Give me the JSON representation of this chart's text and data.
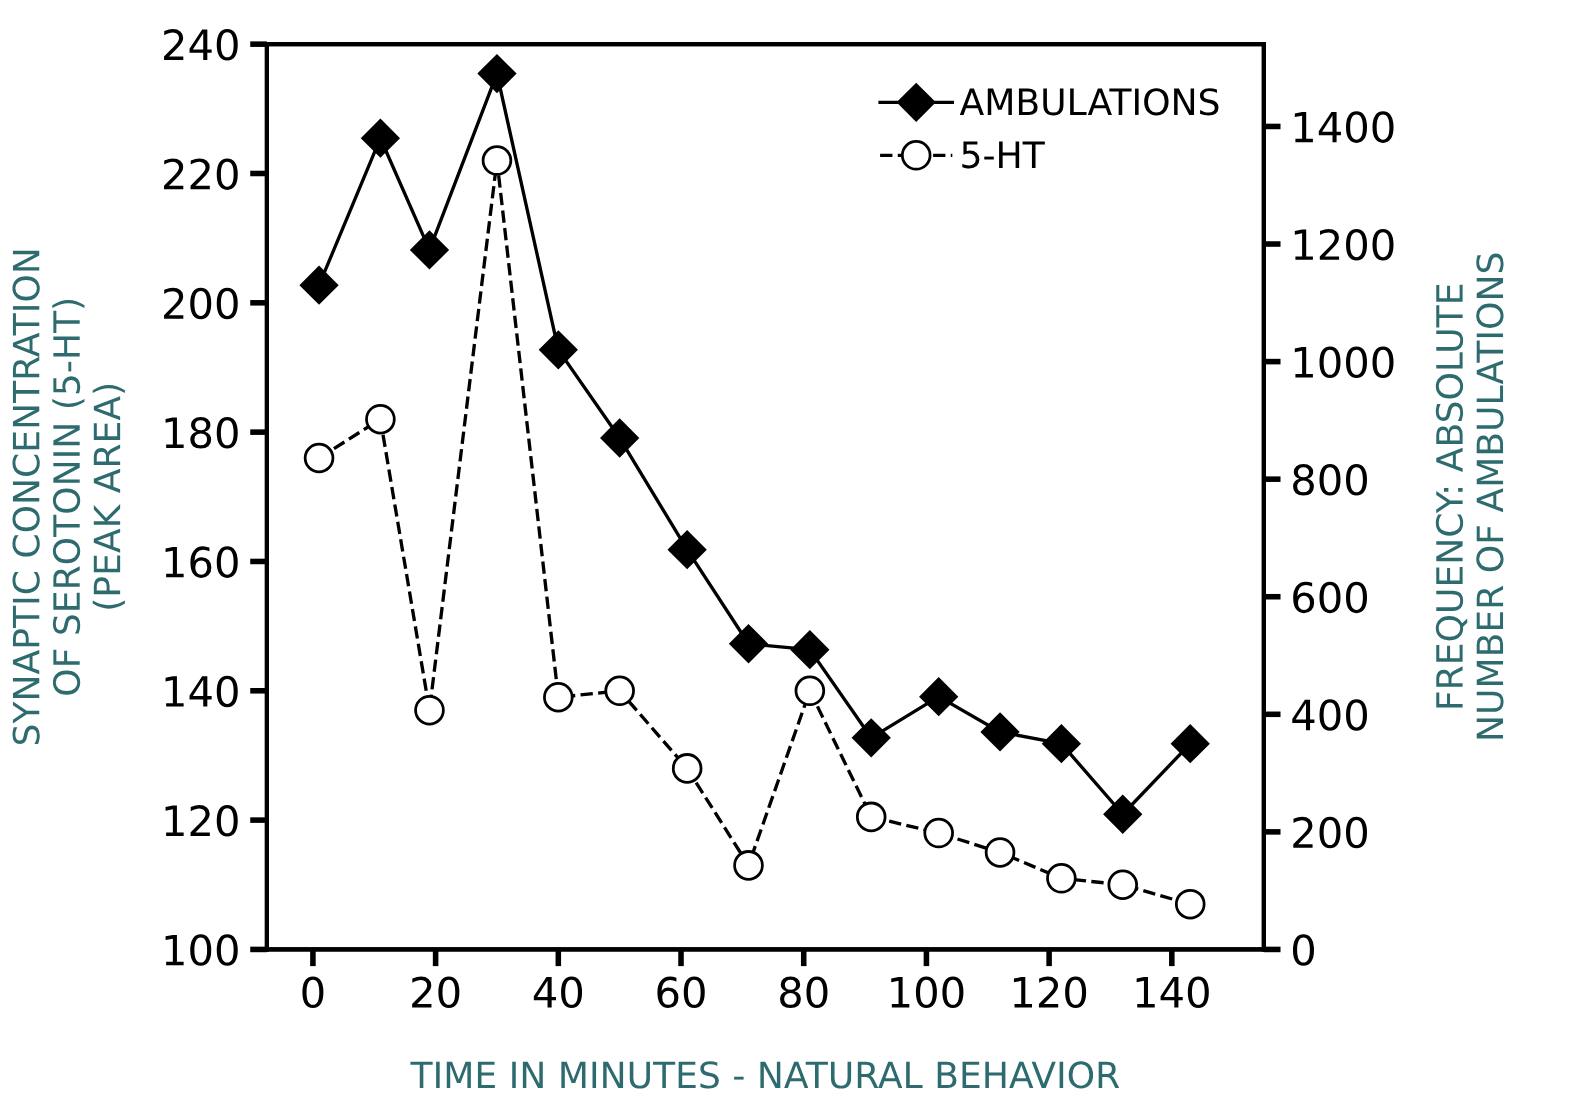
{
  "chart_data": {
    "type": "line",
    "xlabel": "TIME IN MINUTES - NATURAL BEHAVIOR",
    "ylabel": "SYNAPTIC CONCENTRATION\nOF SEROTONIN (5-HT)\n(PEAK AREA)",
    "y2label": "FREQUENCY: ABSOLUTE\nNUMBER OF AMBULATIONS",
    "x": [
      1,
      11,
      19,
      30,
      40,
      50,
      61,
      71,
      81,
      91,
      102,
      112,
      122,
      132,
      143
    ],
    "series": [
      {
        "name": "AMBULATIONS",
        "color": "#000000",
        "axis": "y2",
        "marker": "diamond",
        "line_style": "solid",
        "values": [
          1130,
          1380,
          1190,
          1490,
          1020,
          870,
          680,
          520,
          510,
          360,
          430,
          370,
          350,
          230,
          350
        ]
      },
      {
        "name": "5-HT",
        "color": "#000000",
        "axis": "y",
        "marker": "circle",
        "line_style": "dashed",
        "values": [
          176,
          182,
          137,
          222,
          139,
          140,
          128,
          113,
          140,
          120.5,
          118,
          115,
          111,
          110,
          107
        ]
      }
    ],
    "xlim": [
      -7.5,
      155
    ],
    "xticks": [
      0,
      20,
      40,
      60,
      80,
      100,
      120,
      140
    ],
    "ylim": [
      100,
      240
    ],
    "yticks": [
      100,
      120,
      140,
      160,
      180,
      200,
      220,
      240
    ],
    "y2lim": [
      0,
      1540
    ],
    "y2ticks": [
      0,
      200,
      400,
      600,
      800,
      1000,
      1200,
      1400
    ],
    "grid": false,
    "legend": "top right"
  }
}
